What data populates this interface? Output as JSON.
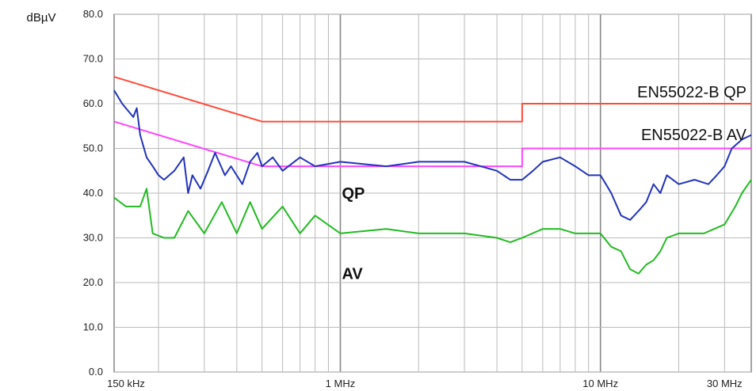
{
  "chart_data": {
    "type": "line",
    "y_unit": "dBµV",
    "x_scale": "log",
    "xlim": [
      0.135,
      38
    ],
    "ylim": [
      0,
      80
    ],
    "y_ticks": [
      0,
      10,
      20,
      30,
      40,
      50,
      60,
      70,
      80
    ],
    "y_tick_labels": [
      "0.0",
      "10.0",
      "20.0",
      "30.0",
      "40.0",
      "50.0",
      "60.0",
      "70.0",
      "80.0"
    ],
    "x_ticks": [
      {
        "value": 0.15,
        "label": "150 kHz"
      },
      {
        "value": 1,
        "label": "1 MHz"
      },
      {
        "value": 10,
        "label": "10 MHz"
      },
      {
        "value": 30,
        "label": "30 MHz"
      }
    ],
    "grid": true,
    "series": [
      {
        "name": "EN55022-B QP",
        "color": "#ff4a3a",
        "points": [
          [
            0.135,
            66
          ],
          [
            0.5,
            56
          ],
          [
            5,
            56
          ],
          [
            5,
            60
          ],
          [
            38,
            60
          ]
        ]
      },
      {
        "name": "EN55022-B AV",
        "color": "#ff44ff",
        "points": [
          [
            0.135,
            56
          ],
          [
            0.5,
            46
          ],
          [
            5,
            46
          ],
          [
            5,
            50
          ],
          [
            38,
            50
          ]
        ]
      },
      {
        "name": "QP",
        "color": "#2233bb",
        "points": [
          [
            0.135,
            63
          ],
          [
            0.145,
            60
          ],
          [
            0.16,
            57
          ],
          [
            0.165,
            59
          ],
          [
            0.17,
            53
          ],
          [
            0.18,
            48
          ],
          [
            0.19,
            46
          ],
          [
            0.2,
            44
          ],
          [
            0.21,
            43
          ],
          [
            0.23,
            45
          ],
          [
            0.25,
            48
          ],
          [
            0.26,
            40
          ],
          [
            0.27,
            44
          ],
          [
            0.29,
            41
          ],
          [
            0.31,
            45
          ],
          [
            0.33,
            49
          ],
          [
            0.36,
            44
          ],
          [
            0.38,
            46
          ],
          [
            0.42,
            42
          ],
          [
            0.45,
            47
          ],
          [
            0.48,
            49
          ],
          [
            0.5,
            46
          ],
          [
            0.55,
            48
          ],
          [
            0.6,
            45
          ],
          [
            0.7,
            48
          ],
          [
            0.8,
            46
          ],
          [
            1,
            47
          ],
          [
            1.5,
            46
          ],
          [
            2,
            47
          ],
          [
            3,
            47
          ],
          [
            4,
            45
          ],
          [
            4.5,
            43
          ],
          [
            5,
            43
          ],
          [
            5.5,
            45
          ],
          [
            6,
            47
          ],
          [
            7,
            48
          ],
          [
            8,
            46
          ],
          [
            9,
            44
          ],
          [
            10,
            44
          ],
          [
            10.5,
            42
          ],
          [
            11,
            40
          ],
          [
            12,
            35
          ],
          [
            13,
            34
          ],
          [
            14,
            36
          ],
          [
            15,
            38
          ],
          [
            16,
            42
          ],
          [
            17,
            40
          ],
          [
            18,
            44
          ],
          [
            20,
            42
          ],
          [
            23,
            43
          ],
          [
            26,
            42
          ],
          [
            28,
            44
          ],
          [
            30,
            46
          ],
          [
            32,
            50
          ],
          [
            35,
            52
          ],
          [
            38,
            53
          ]
        ]
      },
      {
        "name": "AV",
        "color": "#22bb22",
        "points": [
          [
            0.135,
            39
          ],
          [
            0.15,
            37
          ],
          [
            0.17,
            37
          ],
          [
            0.18,
            41
          ],
          [
            0.19,
            31
          ],
          [
            0.21,
            30
          ],
          [
            0.23,
            30
          ],
          [
            0.26,
            36
          ],
          [
            0.3,
            31
          ],
          [
            0.35,
            38
          ],
          [
            0.4,
            31
          ],
          [
            0.45,
            38
          ],
          [
            0.5,
            32
          ],
          [
            0.6,
            37
          ],
          [
            0.7,
            31
          ],
          [
            0.8,
            35
          ],
          [
            1,
            31
          ],
          [
            1.5,
            32
          ],
          [
            2,
            31
          ],
          [
            3,
            31
          ],
          [
            4,
            30
          ],
          [
            4.5,
            29
          ],
          [
            5,
            30
          ],
          [
            6,
            32
          ],
          [
            7,
            32
          ],
          [
            8,
            31
          ],
          [
            9,
            31
          ],
          [
            10,
            31
          ],
          [
            11,
            28
          ],
          [
            12,
            27
          ],
          [
            13,
            23
          ],
          [
            14,
            22
          ],
          [
            15,
            24
          ],
          [
            16,
            25
          ],
          [
            17,
            27
          ],
          [
            18,
            30
          ],
          [
            20,
            31
          ],
          [
            25,
            31
          ],
          [
            30,
            33
          ],
          [
            33,
            37
          ],
          [
            35,
            40
          ],
          [
            38,
            43
          ]
        ]
      }
    ],
    "annotations": [
      {
        "text": "QP",
        "x": 1,
        "y": 40,
        "style": "bold"
      },
      {
        "text": "AV",
        "x": 1,
        "y": 22,
        "style": "bold"
      }
    ]
  }
}
